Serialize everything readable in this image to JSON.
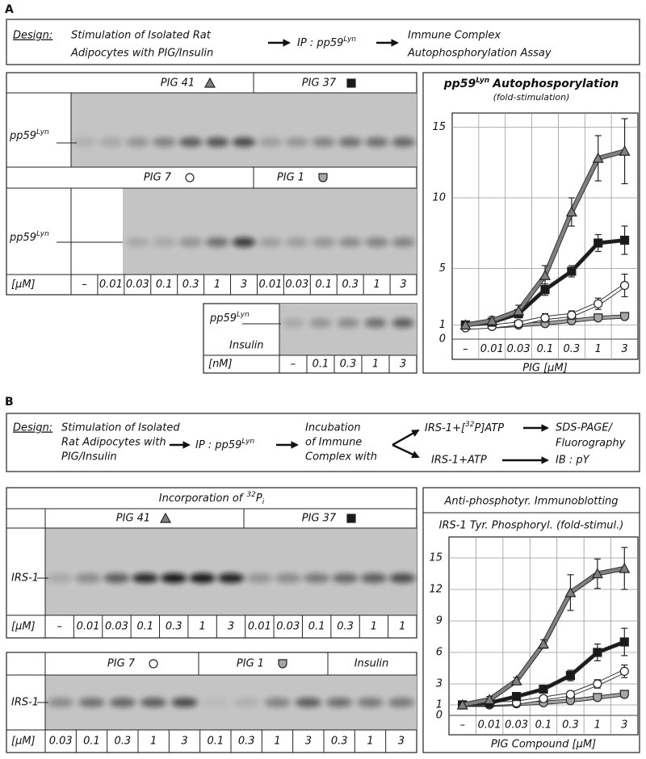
{
  "panel_a": {
    "label": "A",
    "design": {
      "label": "Design:",
      "step1": [
        "Stimulation of Isolated Rat",
        "Adipocytes with PIG/Insulin"
      ],
      "step2": "IP : pp59",
      "step2_sup": "Lyn",
      "step3": [
        "Immune Complex",
        "Autophosphorylation Assay"
      ]
    },
    "blot": {
      "band_label": "pp59",
      "band_label_sup": "Lyn",
      "unit": "[μM]",
      "lanes": [
        "–",
        "0.01",
        "0.03",
        "0.1",
        "0.3",
        "1",
        "3",
        "0.01",
        "0.03",
        "0.1",
        "0.3",
        "1",
        "3"
      ]
    },
    "insulin_blot": {
      "band_label": "pp59",
      "band_label_sup": "Lyn",
      "treatment": "Insulin",
      "unit": "[nM]",
      "lanes": [
        "–",
        "0.1",
        "0.3",
        "1",
        "3"
      ]
    }
  },
  "panel_b": {
    "label": "B",
    "design": {
      "label": "Design:",
      "step1": [
        "Stimulation of Isolated",
        "Rat Adipocytes with",
        "PIG/Insulin"
      ],
      "step2": "IP : pp59",
      "step2_sup": "Lyn",
      "step3": [
        "Incubation",
        "of Immune",
        "Complex with"
      ],
      "branch1": {
        "pre": "IRS-1+[",
        "sup": "32",
        "post": "P]ATP",
        "result": [
          "SDS-PAGE/",
          "Fluorography"
        ]
      },
      "branch2": {
        "text": "IRS-1+ATP",
        "result": "IB : pY"
      }
    },
    "blot1": {
      "title": "Incorporation of",
      "title_sup": "32",
      "title_main": "P",
      "title_sub": "i",
      "band_label": "IRS-1",
      "unit": "[μM]",
      "lanes": [
        "–",
        "0.01",
        "0.03",
        "0.1",
        "0.3",
        "1",
        "3",
        "0.01",
        "0.03",
        "0.1",
        "0.3",
        "1",
        "1"
      ]
    },
    "blot2": {
      "insulin": "Insulin",
      "band_label": "IRS-1",
      "unit": "[μM]",
      "lanes": [
        "0.03",
        "0.1",
        "0.3",
        "1",
        "3",
        "0.1",
        "0.3",
        "1",
        "3",
        "0.3",
        "1",
        "3"
      ]
    }
  },
  "chart_data": [
    {
      "type": "line",
      "title_pre": "pp59",
      "title_sup": "Lyn",
      "title": "Autophosporylation",
      "subtitle": "(fold-stimulation)",
      "x_label": "PIG [μM]",
      "categories": [
        "–",
        "0.01",
        "0.03",
        "0.1",
        "0.3",
        "1",
        "3"
      ],
      "ylim": [
        0,
        16
      ],
      "yticks": [
        0,
        1,
        5,
        10,
        15
      ],
      "grid": true,
      "series": [
        {
          "name": "PIG 41",
          "color": "#808080",
          "marker": "triangle",
          "values": [
            1,
            1.3,
            2,
            4.5,
            9,
            12.8,
            13.3
          ],
          "errors": [
            0,
            0.3,
            0.4,
            0.7,
            1,
            1.6,
            2.3
          ]
        },
        {
          "name": "PIG 37",
          "color": "#1a1a1a",
          "marker": "square",
          "values": [
            1,
            1.2,
            1.8,
            3.5,
            4.8,
            6.8,
            7
          ],
          "errors": [
            0,
            0.2,
            0.3,
            0.4,
            0.4,
            0.6,
            1
          ]
        },
        {
          "name": "PIG 7",
          "color": "#ffffff",
          "marker": "circle",
          "values": [
            0.8,
            0.9,
            1.1,
            1.5,
            1.7,
            2.5,
            3.8
          ],
          "errors": [
            0,
            0.1,
            0.2,
            0.3,
            0.3,
            0.4,
            0.8
          ]
        },
        {
          "name": "PIG 1",
          "color": "#a6a6a6",
          "marker": "shield",
          "values": [
            1,
            0.9,
            1,
            1.1,
            1.3,
            1.5,
            1.6
          ],
          "errors": [
            0,
            0.1,
            0.1,
            0.2,
            0.2,
            0.2,
            0.2
          ]
        }
      ]
    },
    {
      "type": "line",
      "title": "Anti-phosphotyr. Immunoblotting",
      "subtitle": "IRS-1 Tyr. Phosphoryl. (fold-stimul.)",
      "x_label": "PIG Compound [μM]",
      "categories": [
        "–",
        "0.01",
        "0.03",
        "0.1",
        "0.3",
        "1",
        "3"
      ],
      "ylim": [
        0,
        17
      ],
      "yticks": [
        0,
        1,
        3,
        6,
        9,
        12,
        15
      ],
      "grid": true,
      "series": [
        {
          "name": "PIG 41",
          "color": "#808080",
          "marker": "triangle",
          "values": [
            1,
            1.5,
            3.3,
            6.8,
            11.7,
            13.5,
            14
          ],
          "errors": [
            0,
            0.3,
            0.3,
            0.4,
            1.7,
            1.4,
            2
          ]
        },
        {
          "name": "PIG 37",
          "color": "#1a1a1a",
          "marker": "square",
          "values": [
            1,
            1.2,
            1.8,
            2.5,
            3.8,
            6,
            7
          ],
          "errors": [
            0,
            0.2,
            0.3,
            0.3,
            0.5,
            0.8,
            1.3
          ]
        },
        {
          "name": "PIG 7",
          "color": "#ffffff",
          "marker": "circle",
          "values": [
            1,
            1.1,
            1.2,
            1.6,
            2,
            3,
            4.2
          ],
          "errors": [
            0,
            0.1,
            0.2,
            0.3,
            0.3,
            0.4,
            0.6
          ]
        },
        {
          "name": "PIG 1",
          "color": "#a6a6a6",
          "marker": "shield",
          "values": [
            1,
            1,
            1.1,
            1.2,
            1.4,
            1.7,
            2
          ],
          "errors": [
            0,
            0.1,
            0.1,
            0.1,
            0.2,
            0.2,
            0.3
          ]
        }
      ]
    }
  ]
}
